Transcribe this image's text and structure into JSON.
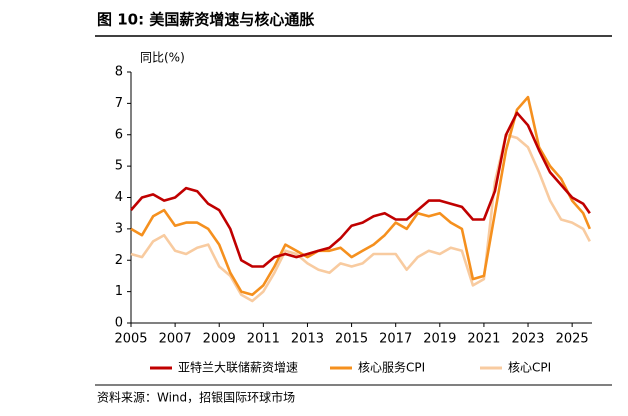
{
  "chart_data": {
    "type": "line",
    "title": "图 10: 美国薪资增速与核心通胀",
    "y_label": "同比(%)",
    "source": "资料来源：Wind，招银国际环球市场",
    "x": [
      2005,
      2005.5,
      2006,
      2006.5,
      2007,
      2007.5,
      2008,
      2008.5,
      2009,
      2009.5,
      2010,
      2010.5,
      2011,
      2011.5,
      2012,
      2012.5,
      2013,
      2013.5,
      2014,
      2014.5,
      2015,
      2015.5,
      2016,
      2016.5,
      2017,
      2017.5,
      2018,
      2018.5,
      2019,
      2019.5,
      2020,
      2020.5,
      2021,
      2021.5,
      2022,
      2022.5,
      2023,
      2023.5,
      2024,
      2024.5,
      2025,
      2025.5,
      2025.8
    ],
    "series": [
      {
        "name": "亚特兰大联储薪资增速",
        "color": "#c00000",
        "values": [
          3.6,
          4.0,
          4.1,
          3.9,
          4.0,
          4.3,
          4.2,
          3.8,
          3.6,
          3.0,
          2.0,
          1.8,
          1.8,
          2.1,
          2.2,
          2.1,
          2.2,
          2.3,
          2.4,
          2.7,
          3.1,
          3.2,
          3.4,
          3.5,
          3.3,
          3.3,
          3.6,
          3.9,
          3.9,
          3.8,
          3.7,
          3.3,
          3.3,
          4.2,
          6.0,
          6.7,
          6.3,
          5.5,
          4.8,
          4.4,
          4.0,
          3.8,
          3.5
        ]
      },
      {
        "name": "核心服务CPI",
        "color": "#f5901e",
        "values": [
          3.0,
          2.8,
          3.4,
          3.6,
          3.1,
          3.2,
          3.2,
          3.0,
          2.5,
          1.6,
          1.0,
          0.9,
          1.2,
          1.8,
          2.5,
          2.3,
          2.1,
          2.3,
          2.3,
          2.4,
          2.1,
          2.3,
          2.5,
          2.8,
          3.2,
          3.0,
          3.5,
          3.4,
          3.5,
          3.2,
          3.0,
          1.4,
          1.5,
          3.5,
          5.5,
          6.8,
          7.2,
          5.6,
          5.0,
          4.6,
          3.9,
          3.5,
          3.0
        ]
      },
      {
        "name": "核心CPI",
        "color": "#f8cba0",
        "values": [
          2.2,
          2.1,
          2.6,
          2.8,
          2.3,
          2.2,
          2.4,
          2.5,
          1.8,
          1.5,
          0.9,
          0.7,
          1.0,
          1.6,
          2.3,
          2.2,
          1.9,
          1.7,
          1.6,
          1.9,
          1.8,
          1.9,
          2.2,
          2.2,
          2.2,
          1.7,
          2.1,
          2.3,
          2.2,
          2.4,
          2.3,
          1.2,
          1.4,
          4.5,
          6.0,
          5.9,
          5.6,
          4.8,
          3.9,
          3.3,
          3.2,
          3.0,
          2.6
        ]
      }
    ],
    "xlim": [
      2005,
      2025.9
    ],
    "xticks": [
      2005,
      2007,
      2009,
      2011,
      2013,
      2015,
      2017,
      2019,
      2021,
      2023,
      2025
    ],
    "ylim": [
      0,
      8
    ],
    "yticks": [
      0,
      1,
      2,
      3,
      4,
      5,
      6,
      7,
      8
    ],
    "legend": "bottom"
  }
}
